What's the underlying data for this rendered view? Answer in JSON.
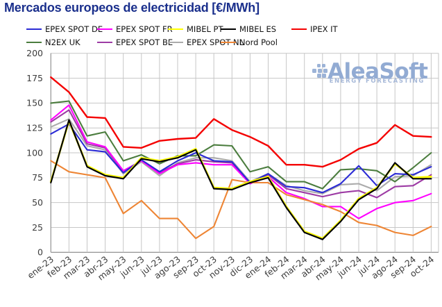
{
  "title": "Mercados europeos de electricidad [€/MWh]",
  "title_color": "#1a2f8c",
  "watermark": {
    "brand": "AleaSoft",
    "subtitle": "ENERGY FORECASTING",
    "color": "#92abd3",
    "subtitle_color": "#a6b8d8"
  },
  "chart_data": {
    "type": "line",
    "unit": "€/MWh",
    "title": "Mercados europeos de electricidad [€/MWh]",
    "x_labels": [
      "ene-23",
      "feb-23",
      "mar-23",
      "abr-23",
      "may-23",
      "jun-23",
      "jul-23",
      "ago-23",
      "sep-23",
      "oct-23",
      "nov-23",
      "dic-23",
      "ene-24",
      "feb-24",
      "mar-24",
      "abr-24",
      "may-24",
      "jun-24",
      "jul-24",
      "ago-24",
      "sep-24",
      "oct-24"
    ],
    "ylim": [
      0,
      200
    ],
    "y_tick_step": 25,
    "grid": true,
    "legend_position": "top",
    "axis_text_color": "#3c3c3c",
    "grid_color": "#c6c6c6",
    "axis_color": "#9a9a9a",
    "series": [
      {
        "name": "EPEX SPOT DE",
        "color": "#2b2bd5",
        "values": [
          119,
          129,
          103,
          101,
          80,
          93,
          81,
          92,
          100,
          92,
          91,
          70,
          79,
          66,
          65,
          60,
          69,
          87,
          67,
          79,
          78,
          86
        ]
      },
      {
        "name": "EPEX SPOT FR",
        "color": "#ff00ff",
        "values": [
          133,
          148,
          111,
          106,
          82,
          92,
          79,
          88,
          90,
          88,
          88,
          69,
          76,
          60,
          54,
          46,
          46,
          34,
          44,
          50,
          52,
          59
        ]
      },
      {
        "name": "MIBEL PT",
        "color": "#ffff00",
        "values": [
          71,
          132,
          87,
          78,
          75,
          95,
          92,
          96,
          104,
          65,
          64,
          71,
          76,
          46,
          21,
          14,
          32,
          54,
          65,
          89,
          75,
          76
        ]
      },
      {
        "name": "MIBEL ES",
        "color": "#000000",
        "values": [
          70,
          133,
          86,
          77,
          74,
          94,
          91,
          95,
          103,
          64,
          63,
          70,
          75,
          45,
          20,
          13,
          31,
          53,
          64,
          90,
          74,
          74
        ]
      },
      {
        "name": "IPEX IT",
        "color": "#f40000",
        "values": [
          176,
          161,
          136,
          135,
          106,
          105,
          112,
          114,
          115,
          134,
          123,
          116,
          107,
          88,
          88,
          86,
          93,
          104,
          110,
          128,
          117,
          116
        ]
      },
      {
        "name": "N2EX UK",
        "color": "#4b7d3e",
        "values": [
          150,
          152,
          117,
          121,
          92,
          98,
          89,
          97,
          97,
          108,
          107,
          81,
          86,
          71,
          71,
          64,
          83,
          84,
          82,
          71,
          85,
          100
        ]
      },
      {
        "name": "EPEX SPOT BE",
        "color": "#9d3ba4",
        "values": [
          131,
          143,
          109,
          105,
          81,
          92,
          80,
          89,
          93,
          91,
          90,
          69,
          78,
          64,
          60,
          56,
          60,
          62,
          55,
          66,
          67,
          78
        ]
      },
      {
        "name": "EPEX SPOT NL",
        "color": "#ababab",
        "values": [
          126,
          134,
          107,
          103,
          79,
          91,
          77,
          90,
          95,
          95,
          92,
          71,
          79,
          67,
          62,
          59,
          68,
          69,
          62,
          76,
          77,
          88
        ]
      },
      {
        "name": "Nord Pool",
        "color": "#ee8534",
        "values": [
          92,
          81,
          78,
          75,
          39,
          52,
          34,
          34,
          14,
          26,
          73,
          70,
          70,
          58,
          53,
          48,
          41,
          30,
          27,
          20,
          17,
          26
        ]
      }
    ]
  }
}
